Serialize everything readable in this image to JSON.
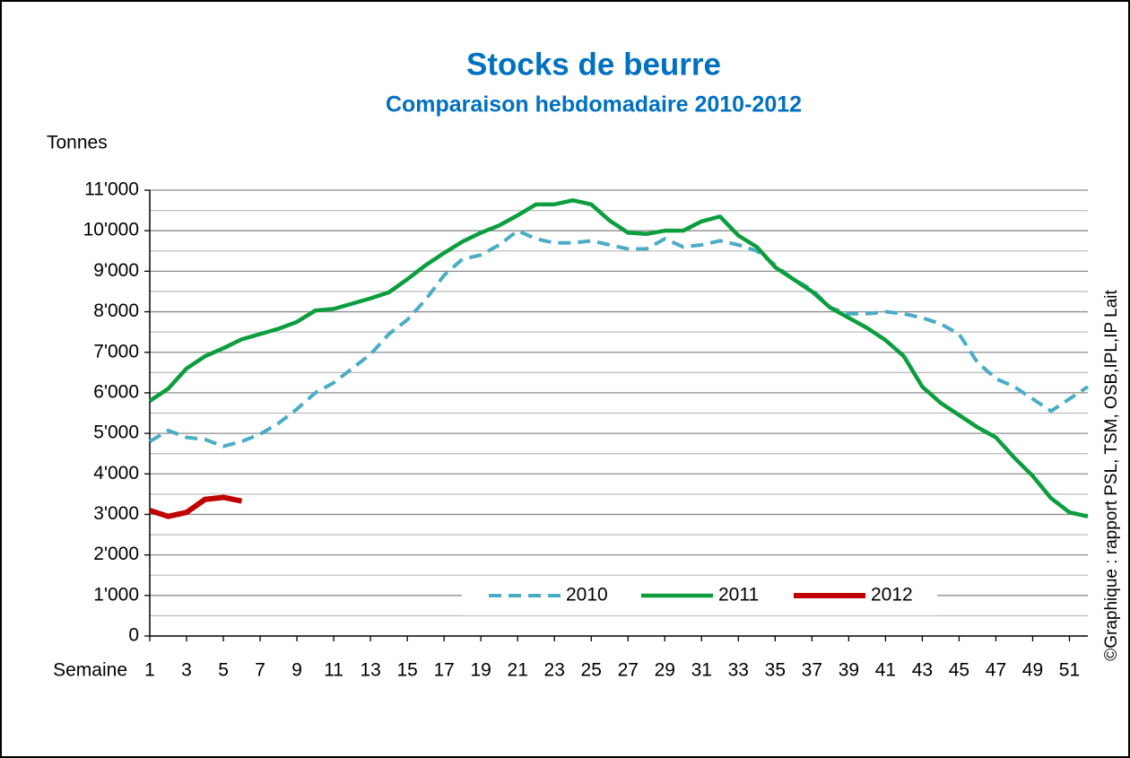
{
  "chart_data": {
    "type": "line",
    "title": "Stocks de beurre",
    "subtitle": "Comparaison hebdomadaire 2010-2012",
    "ylabel": "Tonnes",
    "xlabel": "Semaine",
    "source": "©Graphique : rapport PSL, TSM, OSB,IPL,IP Lait",
    "x": [
      1,
      2,
      3,
      4,
      5,
      6,
      7,
      8,
      9,
      10,
      11,
      12,
      13,
      14,
      15,
      16,
      17,
      18,
      19,
      20,
      21,
      22,
      23,
      24,
      25,
      26,
      27,
      28,
      29,
      30,
      31,
      32,
      33,
      34,
      35,
      36,
      37,
      38,
      39,
      40,
      41,
      42,
      43,
      44,
      45,
      46,
      47,
      48,
      49,
      50,
      51,
      52
    ],
    "xlim": [
      1,
      52
    ],
    "xticks": [
      1,
      3,
      5,
      7,
      9,
      11,
      13,
      15,
      17,
      19,
      21,
      23,
      25,
      27,
      29,
      31,
      33,
      35,
      37,
      39,
      41,
      43,
      45,
      47,
      49,
      51
    ],
    "ylim": [
      0,
      11000
    ],
    "yticks": [
      0,
      {
        "value": 1000,
        "label": "1'000"
      },
      {
        "value": 2000,
        "label": "2'000"
      },
      {
        "value": 3000,
        "label": "3'000"
      },
      {
        "value": 4000,
        "label": "4'000"
      },
      {
        "value": 5000,
        "label": "5'000"
      },
      {
        "value": 6000,
        "label": "6'000"
      },
      {
        "value": 7000,
        "label": "7'000"
      },
      {
        "value": 8000,
        "label": "8'000"
      },
      {
        "value": 9000,
        "label": "9'000"
      },
      {
        "value": 10000,
        "label": "10'000"
      },
      {
        "value": 11000,
        "label": "11'000"
      }
    ],
    "minor_yticks": [
      500,
      1500,
      2500,
      3500,
      4500,
      5500,
      6500,
      7500,
      8500,
      9500,
      10500
    ],
    "grid": true,
    "legend": "bottom",
    "series": [
      {
        "name": "2010",
        "color": "#4bacc6",
        "line_style": "dashed",
        "values": [
          4800,
          5070,
          4900,
          4850,
          4680,
          4800,
          4980,
          5250,
          5600,
          6000,
          6250,
          6600,
          6950,
          7450,
          7800,
          8300,
          8900,
          9300,
          9400,
          9650,
          10000,
          9800,
          9700,
          9700,
          9750,
          9650,
          9550,
          9550,
          9800,
          9600,
          9650,
          9750,
          9650,
          9500,
          9150,
          8800,
          8550,
          8100,
          7950,
          7950,
          8000,
          7950,
          7850,
          7700,
          7450,
          6750,
          6350,
          6150,
          5850,
          5550,
          5850,
          6150
        ]
      },
      {
        "name": "2011",
        "color": "#0c9e3e",
        "line_style": "solid",
        "values": [
          5800,
          6100,
          6600,
          6900,
          7100,
          7320,
          7450,
          7580,
          7750,
          8030,
          8070,
          8200,
          8330,
          8480,
          8800,
          9150,
          9450,
          9730,
          9950,
          10130,
          10380,
          10650,
          10650,
          10750,
          10650,
          10250,
          9950,
          9920,
          10000,
          10000,
          10230,
          10350,
          9880,
          9600,
          9100,
          8800,
          8500,
          8100,
          7850,
          7600,
          7300,
          6900,
          6150,
          5750,
          5450,
          5150,
          4900,
          4400,
          3950,
          3400,
          3050,
          2950
        ]
      },
      {
        "name": "2012",
        "color": "#c00000",
        "line_style": "solid",
        "values": [
          3100,
          2950,
          3050,
          3370,
          3420,
          3330,
          null,
          null,
          null,
          null,
          null,
          null,
          null,
          null,
          null,
          null,
          null,
          null,
          null,
          null,
          null,
          null,
          null,
          null,
          null,
          null,
          null,
          null,
          null,
          null,
          null,
          null,
          null,
          null,
          null,
          null,
          null,
          null,
          null,
          null,
          null,
          null,
          null,
          null,
          null,
          null,
          null,
          null,
          null,
          null,
          null,
          null
        ]
      }
    ]
  }
}
